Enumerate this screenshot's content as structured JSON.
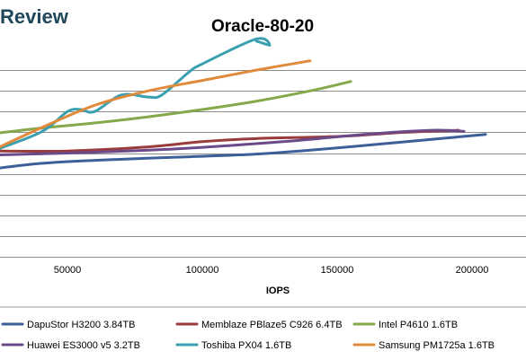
{
  "header": {
    "brand": "Review"
  },
  "chart_data": {
    "type": "line",
    "title": "Oracle-80-20",
    "xlabel": "IOPS",
    "ylabel": "",
    "xlim": [
      20000,
      220000
    ],
    "ylim": [
      0,
      10
    ],
    "xticks": [
      50000,
      100000,
      150000,
      200000
    ],
    "xtick_labels": [
      "50000",
      "100000",
      "150000",
      "200000"
    ],
    "ygrid": [
      0,
      1,
      2,
      3,
      4,
      5,
      6,
      7,
      8,
      9
    ],
    "grid": true,
    "legend_position": "bottom",
    "series": [
      {
        "name": "DapuStor H3200 3.84TB",
        "color": "#3c5f9a",
        "x": [
          20000,
          40000,
          60000,
          90000,
          120000,
          150000,
          180000,
          205000
        ],
        "y": [
          4.2,
          4.5,
          4.65,
          4.8,
          4.95,
          5.25,
          5.6,
          5.9
        ]
      },
      {
        "name": "Memblaze PBlaze5 C926 6.4TB",
        "color": "#9a3c3c",
        "x": [
          20000,
          50000,
          80000,
          100000,
          120000,
          150000,
          175000,
          195000
        ],
        "y": [
          5.1,
          5.1,
          5.3,
          5.55,
          5.7,
          5.8,
          6.0,
          6.1
        ]
      },
      {
        "name": "Intel P4610 1.6TB",
        "color": "#84a84a",
        "x": [
          20000,
          40000,
          60000,
          80000,
          100000,
          120000,
          140000,
          155000
        ],
        "y": [
          5.9,
          6.2,
          6.45,
          6.75,
          7.1,
          7.5,
          8.0,
          8.45
        ]
      },
      {
        "name": "Huawei ES3000 v5 3.2TB",
        "color": "#6b4a8a",
        "x": [
          20000,
          50000,
          90000,
          130000,
          160000,
          185000,
          197000
        ],
        "y": [
          4.9,
          5.0,
          5.2,
          5.55,
          5.9,
          6.1,
          6.05
        ]
      },
      {
        "name": "Toshiba PX04 1.6TB",
        "color": "#3aa0b0",
        "x": [
          20000,
          40000,
          50000,
          55000,
          60000,
          70000,
          80000,
          85000,
          95000,
          100000,
          120000,
          125000,
          120000
        ],
        "y": [
          5.0,
          6.0,
          7.0,
          7.1,
          7.0,
          7.8,
          7.7,
          7.8,
          8.9,
          9.3,
          10.5,
          10.2,
          10.4
        ]
      },
      {
        "name": "Samsung PM1725a 1.6TB",
        "color": "#e08a3c",
        "x": [
          20000,
          40000,
          60000,
          80000,
          100000,
          120000,
          140000
        ],
        "y": [
          5.0,
          6.2,
          7.3,
          8.0,
          8.5,
          9.0,
          9.45
        ]
      }
    ]
  }
}
